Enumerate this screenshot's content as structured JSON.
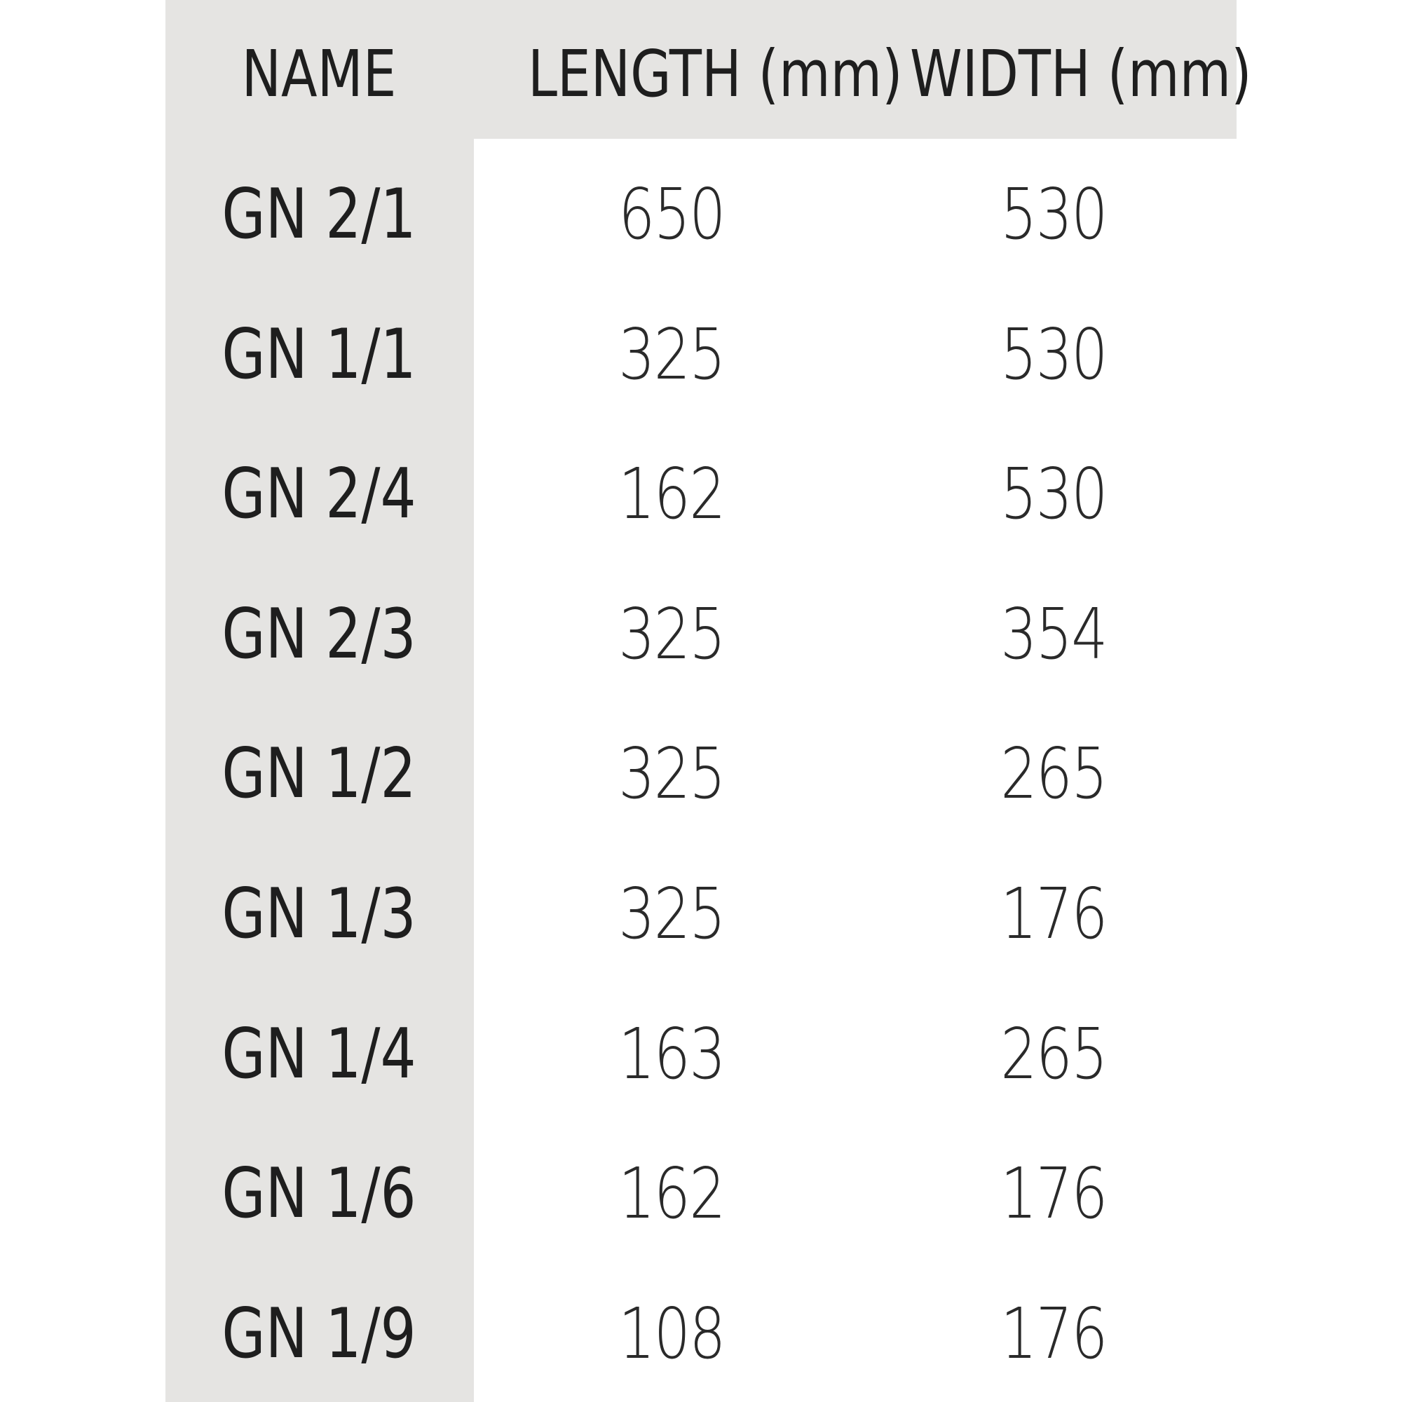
{
  "table": {
    "header": [
      "NAME",
      "LENGTH (mm)",
      "WIDTH (mm)"
    ],
    "rows": [
      [
        "GN 2/1",
        650,
        530
      ],
      [
        "GN 1/1",
        325,
        530
      ],
      [
        "GN 2/4",
        162,
        530
      ],
      [
        "GN 2/3",
        325,
        354
      ],
      [
        "GN 1/2",
        325,
        265
      ],
      [
        "GN 1/3",
        325,
        176
      ],
      [
        "GN 1/4",
        163,
        265
      ],
      [
        "GN 1/6",
        162,
        176
      ],
      [
        "GN 1/9",
        108,
        176
      ]
    ]
  }
}
